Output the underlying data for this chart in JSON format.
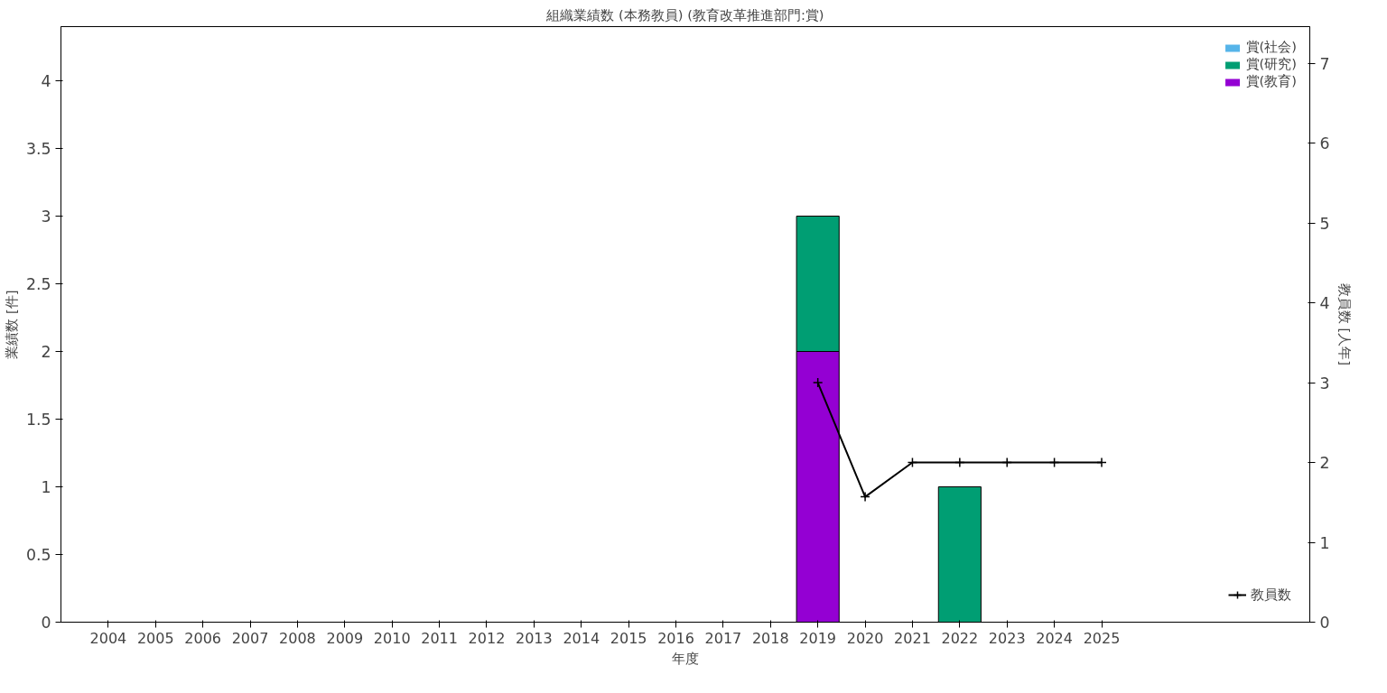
{
  "chart_data": {
    "type": "bar",
    "title": "組織業績数 (本務教員) (教育改革推進部門:賞)",
    "xlabel": "年度",
    "ylabel": "業績数 [件]",
    "y2label": "教員数 [人年]",
    "x": [
      2004,
      2005,
      2006,
      2007,
      2008,
      2009,
      2010,
      2011,
      2012,
      2013,
      2014,
      2015,
      2016,
      2017,
      2018,
      2019,
      2020,
      2021,
      2022,
      2023,
      2024,
      2025
    ],
    "xlim": [
      2003,
      2029.4
    ],
    "xticks": [
      2004,
      2005,
      2006,
      2007,
      2008,
      2009,
      2010,
      2011,
      2012,
      2013,
      2014,
      2015,
      2016,
      2017,
      2018,
      2019,
      2020,
      2021,
      2022,
      2023,
      2024,
      2025
    ],
    "stacked": true,
    "series": [
      {
        "name": "賞(教育)",
        "color": "#9400d3",
        "values": [
          0,
          0,
          0,
          0,
          0,
          0,
          0,
          0,
          0,
          0,
          0,
          0,
          0,
          0,
          0,
          2,
          0,
          0,
          0,
          0,
          0,
          0
        ]
      },
      {
        "name": "賞(研究)",
        "color": "#009e73",
        "values": [
          0,
          0,
          0,
          0,
          0,
          0,
          0,
          0,
          0,
          0,
          0,
          0,
          0,
          0,
          0,
          1,
          0,
          0,
          1,
          0,
          0,
          0
        ]
      },
      {
        "name": "賞(社会)",
        "color": "#56b4e9",
        "values": [
          0,
          0,
          0,
          0,
          0,
          0,
          0,
          0,
          0,
          0,
          0,
          0,
          0,
          0,
          0,
          0,
          0,
          0,
          0,
          0,
          0,
          0
        ]
      },
      {
        "name": "教員数",
        "type": "line",
        "axis": "y2",
        "color": "#000000",
        "marker": "cross",
        "values": [
          null,
          null,
          null,
          null,
          null,
          null,
          null,
          null,
          null,
          null,
          null,
          null,
          null,
          null,
          null,
          3,
          1.57,
          2,
          2,
          2,
          2,
          2
        ]
      }
    ],
    "ylim": [
      0,
      4.4
    ],
    "yticks": [
      0,
      0.5,
      1,
      1.5,
      2,
      2.5,
      3,
      3.5,
      4
    ],
    "y2lim": [
      0,
      7.46
    ],
    "y2ticks": [
      0,
      1,
      2,
      3,
      4,
      5,
      6,
      7
    ],
    "grid": false,
    "legend": "top right"
  }
}
